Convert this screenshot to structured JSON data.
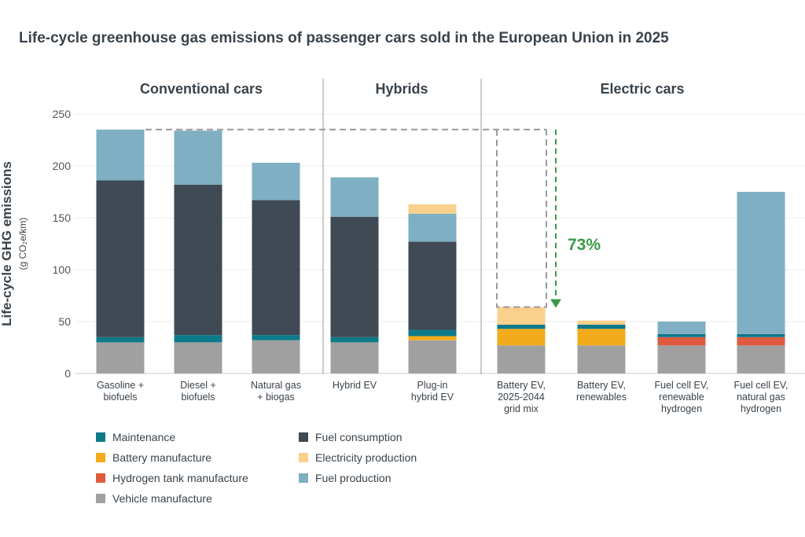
{
  "chart_data": {
    "type": "bar",
    "stacked": true,
    "title": "Life-cycle greenhouse gas emissions of passenger cars sold in the European Union in 2025",
    "ylabel": "Life-cycle GHG emissions",
    "yunit": "(g CO₂e/km)",
    "ylim": [
      0,
      250
    ],
    "yticks": [
      0,
      50,
      100,
      150,
      200,
      250
    ],
    "grid": true,
    "groups": [
      {
        "label": "Conventional cars",
        "categories": [
          0,
          1,
          2
        ]
      },
      {
        "label": "Hybrids",
        "categories": [
          3,
          4
        ]
      },
      {
        "label": "Electric cars",
        "categories": [
          5,
          6,
          7,
          8
        ]
      }
    ],
    "categories": [
      [
        "Gasoline +",
        "biofuels"
      ],
      [
        "Diesel +",
        "biofuels"
      ],
      [
        "Natural gas",
        "+ biogas"
      ],
      [
        "Hybrid EV"
      ],
      [
        "Plug-in",
        "hybrid EV"
      ],
      [
        "Battery EV,",
        "2025-2044",
        "grid mix"
      ],
      [
        "Battery EV,",
        "renewables"
      ],
      [
        "Fuel cell EV,",
        "renewable",
        "hydrogen"
      ],
      [
        "Fuel cell EV,",
        "natural gas",
        "hydrogen"
      ]
    ],
    "series": [
      {
        "name": "Vehicle manufacture",
        "color": "#a0a0a0",
        "values": [
          30,
          30,
          32,
          30,
          32,
          27,
          27,
          27,
          27
        ]
      },
      {
        "name": "Hydrogen tank manufacture",
        "color": "#e05a3f",
        "values": [
          0,
          0,
          0,
          0,
          0,
          0,
          0,
          8,
          8
        ]
      },
      {
        "name": "Battery manufacture",
        "color": "#f2ab1b",
        "values": [
          0,
          0,
          0,
          0,
          4,
          16,
          16,
          0,
          0
        ]
      },
      {
        "name": "Maintenance",
        "color": "#0d7a8a",
        "values": [
          5,
          7,
          5,
          5,
          6,
          4,
          4,
          3,
          3
        ]
      },
      {
        "name": "Fuel consumption",
        "color": "#3f4a54",
        "values": [
          151,
          145,
          130,
          116,
          85,
          0,
          0,
          0,
          0
        ]
      },
      {
        "name": "Fuel production",
        "color": "#7eafc2",
        "values": [
          49,
          52,
          36,
          38,
          27,
          0,
          0,
          12,
          137
        ]
      },
      {
        "name": "Electricity production",
        "color": "#f9d08c",
        "values": [
          0,
          0,
          0,
          0,
          9,
          17,
          4,
          0,
          0
        ]
      }
    ],
    "legend_order": [
      "Maintenance",
      "Battery manufacture",
      "Hydrogen tank manufacture",
      "Vehicle manufacture",
      "Fuel consumption",
      "Electricity production",
      "Fuel production"
    ],
    "annotation": {
      "text": "73%",
      "color": "#3a9a48",
      "from_value": 235,
      "to_value": 64,
      "category": 5
    }
  }
}
